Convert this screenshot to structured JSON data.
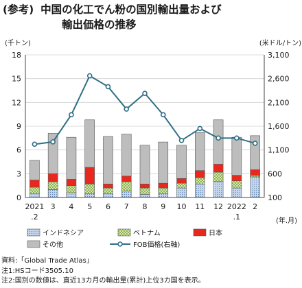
{
  "title": {
    "prefix": "(参考)",
    "line1": "中国の化工でん粉の国別輸出量および",
    "line2": "輸出価格の推移"
  },
  "chart_data": {
    "type": "bar",
    "stacked": true,
    "ylabel_left": "(千トン)",
    "ylabel_right": "(米ドル/トン)",
    "xlabel": "(年.月)",
    "categories": [
      "2021.2",
      "3",
      "4",
      "5",
      "6",
      "7",
      "8",
      "9",
      "10",
      "11",
      "12",
      "2022.1",
      "2"
    ],
    "x_tick_labels": [
      [
        "2021",
        ".2"
      ],
      [
        "3"
      ],
      [
        "4"
      ],
      [
        "5"
      ],
      [
        "6"
      ],
      [
        "7"
      ],
      [
        "8"
      ],
      [
        "9"
      ],
      [
        "10"
      ],
      [
        "11"
      ],
      [
        "12"
      ],
      [
        "2022",
        ".1"
      ],
      [
        "2"
      ]
    ],
    "ylim_left": [
      0,
      18
    ],
    "yticks_left": [
      "0",
      "3",
      "6",
      "9",
      "12",
      "15",
      "18"
    ],
    "ylim_right": [
      100,
      3100
    ],
    "yticks_right": [
      "100",
      "600",
      "1,100",
      "1,600",
      "2,100",
      "2,600",
      "3,100"
    ],
    "series": [
      {
        "name": "インドネシア",
        "color": "#c5d6ec",
        "pattern": "dots",
        "values": [
          0.5,
          1.0,
          0.6,
          0.5,
          0.5,
          0.8,
          0.4,
          0.5,
          1.2,
          1.7,
          2.0,
          1.2,
          2.6
        ]
      },
      {
        "name": "ベトナム",
        "color": "#d6e8b0",
        "pattern": "checker",
        "values": [
          0.8,
          1.0,
          0.9,
          1.2,
          0.7,
          1.2,
          0.8,
          0.7,
          0.6,
          0.8,
          1.2,
          0.9,
          0.2
        ]
      },
      {
        "name": "日本",
        "color": "#e8281e",
        "pattern": "none",
        "values": [
          0.9,
          1.0,
          0.8,
          2.1,
          0.5,
          0.7,
          0.5,
          0.6,
          0.6,
          0.9,
          1.0,
          0.7,
          0.7
        ]
      },
      {
        "name": "その他",
        "color": "#bdbdbd",
        "pattern": "none",
        "values": [
          2.5,
          5.1,
          5.3,
          6.0,
          6.0,
          5.3,
          4.9,
          5.2,
          4.2,
          4.8,
          5.6,
          4.8,
          4.3
        ]
      }
    ],
    "line_series": {
      "name": "FOB価格(右軸)",
      "axis": "right",
      "color": "#2f6f85",
      "values": [
        1220,
        1270,
        1840,
        2660,
        2430,
        1960,
        2290,
        1840,
        1300,
        1550,
        1350,
        1350,
        1240
      ]
    },
    "legend_placement": "bottom",
    "grid": true
  },
  "notes": [
    "資料:「Global Trade Atlas」",
    "注1:HSコード3505.10",
    "注2:国別の数値は、直近13カ月の輸出量(累計)上位3カ国を表示。"
  ]
}
